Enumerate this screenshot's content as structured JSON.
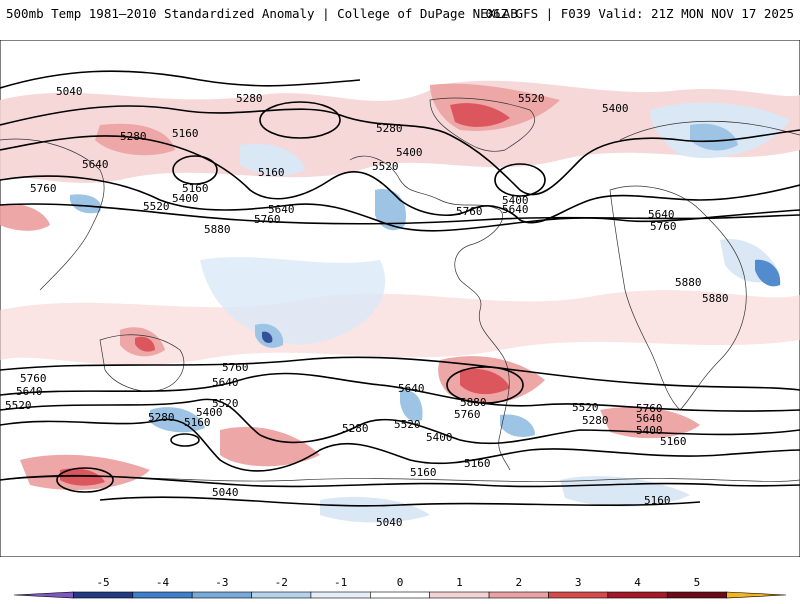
{
  "header": {
    "title_left": "500mb Temp 1981–2010 Standardized Anomaly | College of DuPage NEXLAB",
    "title_right": "06Z GFS | F039 Valid: 21Z MON NOV 17 2025"
  },
  "colors": {
    "warm_light": "#f6d4d4",
    "warm_mid": "#ec9e9e",
    "warm_strong": "#d9434b",
    "warm_extreme": "#8b0b1a",
    "cold_light": "#d6e6f5",
    "cold_mid": "#92bde3",
    "cold_strong": "#3f7fc9",
    "cold_extreme": "#1d3f8c",
    "contour": "#000000",
    "coastline": "#333333"
  },
  "colorbar": {
    "tick_labels": [
      "-5",
      "-4",
      "-3",
      "-2",
      "-1",
      "0",
      "1",
      "2",
      "3",
      "4",
      "5"
    ],
    "segment_colors": [
      "#7e57c2",
      "#233b80",
      "#3f7fc9",
      "#78a9d9",
      "#b5d1ec",
      "#e3eef8",
      "#ffffff",
      "#f3d2d2",
      "#e7a3a3",
      "#d44b4b",
      "#a31a2a",
      "#6b0b18",
      "#f2b51f"
    ]
  },
  "contour_labels": [
    {
      "text": "5040"
    },
    {
      "text": "5280"
    },
    {
      "text": "5280"
    },
    {
      "text": "5160"
    },
    {
      "text": "5640"
    },
    {
      "text": "5160"
    },
    {
      "text": "5760"
    },
    {
      "text": "5520"
    },
    {
      "text": "5400"
    },
    {
      "text": "5160"
    },
    {
      "text": "5640"
    },
    {
      "text": "5760"
    },
    {
      "text": "5280"
    },
    {
      "text": "5400"
    },
    {
      "text": "5520"
    },
    {
      "text": "5760"
    },
    {
      "text": "5640"
    },
    {
      "text": "5880"
    },
    {
      "text": "5520"
    },
    {
      "text": "5400"
    },
    {
      "text": "5640"
    },
    {
      "text": "5760"
    },
    {
      "text": "5880"
    },
    {
      "text": "5880"
    },
    {
      "text": "5400"
    },
    {
      "text": "5760"
    },
    {
      "text": "5640"
    },
    {
      "text": "5520"
    },
    {
      "text": "5760"
    },
    {
      "text": "5640"
    },
    {
      "text": "5280"
    },
    {
      "text": "5400"
    },
    {
      "text": "5520"
    },
    {
      "text": "5160"
    },
    {
      "text": "5280"
    },
    {
      "text": "5640"
    },
    {
      "text": "5880"
    },
    {
      "text": "5760"
    },
    {
      "text": "5520"
    },
    {
      "text": "5400"
    },
    {
      "text": "5520"
    },
    {
      "text": "5280"
    },
    {
      "text": "5760"
    },
    {
      "text": "5640"
    },
    {
      "text": "5400"
    },
    {
      "text": "5160"
    },
    {
      "text": "5160"
    },
    {
      "text": "5160"
    },
    {
      "text": "5040"
    },
    {
      "text": "5040"
    },
    {
      "text": "5160"
    }
  ]
}
